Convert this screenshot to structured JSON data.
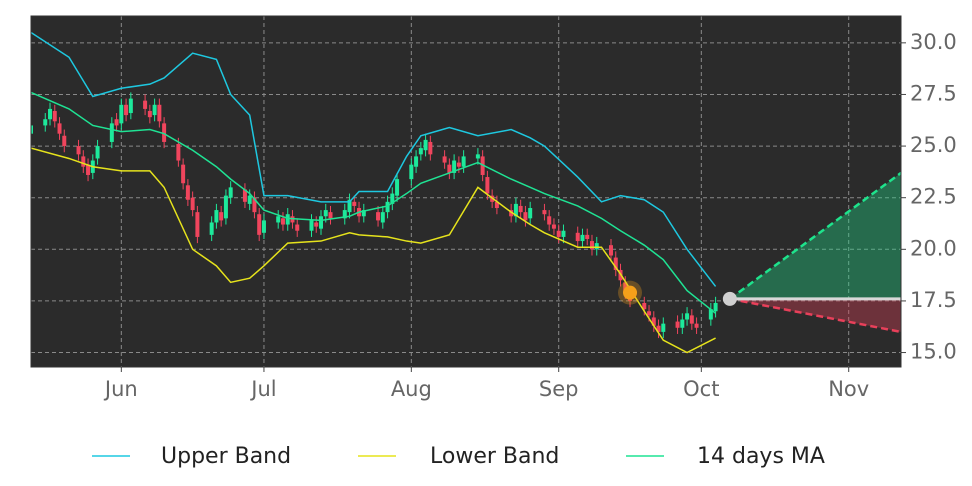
{
  "chart_data": {
    "type": "candlestick",
    "xlim": [
      0,
      183
    ],
    "ylim": [
      14.3,
      31.3
    ],
    "xticks": [
      {
        "value": 19,
        "label": "Jun"
      },
      {
        "value": 49,
        "label": "Jul"
      },
      {
        "value": 80,
        "label": "Aug"
      },
      {
        "value": 111,
        "label": "Sep"
      },
      {
        "value": 141,
        "label": "Oct"
      },
      {
        "value": 172,
        "label": "Nov"
      }
    ],
    "yticks": [
      {
        "value": 15,
        "label": "15.0"
      },
      {
        "value": 17.5,
        "label": "17.5"
      },
      {
        "value": 20,
        "label": "20.0"
      },
      {
        "value": 22.5,
        "label": "22.5"
      },
      {
        "value": 25,
        "label": "25.0"
      },
      {
        "value": 27.5,
        "label": "27.5"
      },
      {
        "value": 30,
        "label": "30.0"
      }
    ],
    "grid": true,
    "background": "#2b2b2b",
    "up_color": "#1de99b",
    "down_color": "#f0455d",
    "x": [
      0,
      3,
      4,
      5,
      6,
      7,
      10,
      11,
      12,
      13,
      14,
      17,
      18,
      19,
      20,
      21,
      24,
      25,
      26,
      27,
      28,
      31,
      32,
      33,
      34,
      35,
      38,
      39,
      40,
      41,
      42,
      45,
      46,
      47,
      48,
      49,
      52,
      53,
      54,
      55,
      56,
      59,
      60,
      61,
      62,
      63,
      66,
      67,
      68,
      69,
      70,
      73,
      74,
      75,
      76,
      77,
      80,
      81,
      82,
      83,
      84,
      87,
      88,
      89,
      90,
      91,
      94,
      95,
      96,
      97,
      98,
      101,
      102,
      103,
      104,
      105,
      108,
      109,
      110,
      111,
      112,
      115,
      116,
      117,
      118,
      119,
      122,
      123,
      124,
      125,
      126,
      129,
      130,
      131,
      132,
      133,
      136,
      137,
      138,
      139,
      140,
      143,
      144
    ],
    "open": [
      25.6,
      26.0,
      26.3,
      26.7,
      26.1,
      25.5,
      25.0,
      24.5,
      24.1,
      23.7,
      24.4,
      25.2,
      26.3,
      26.1,
      27.0,
      26.6,
      27.2,
      26.7,
      26.5,
      27.0,
      26.1,
      25.1,
      24.1,
      23.1,
      22.5,
      21.8,
      20.7,
      21.3,
      21.8,
      21.5,
      22.5,
      22.9,
      22.2,
      22.5,
      21.7,
      20.8,
      21.3,
      21.5,
      21.2,
      21.6,
      21.2,
      20.9,
      21.3,
      21.0,
      21.6,
      21.8,
      21.5,
      21.8,
      22.3,
      22.0,
      21.6,
      21.8,
      21.3,
      21.8,
      22.2,
      22.6,
      23.4,
      24.0,
      24.6,
      24.8,
      25.2,
      24.5,
      24.1,
      23.7,
      24.2,
      24.0,
      24.4,
      24.5,
      23.5,
      22.6,
      22.3,
      21.9,
      21.6,
      22.1,
      21.8,
      21.5,
      21.9,
      21.6,
      21.2,
      20.9,
      20.6,
      20.8,
      20.4,
      20.7,
      20.4,
      20.0,
      20.2,
      19.6,
      19.0,
      18.4,
      17.8,
      17.4,
      17.0,
      16.7,
      16.3,
      16.0,
      16.5,
      16.2,
      16.6,
      16.8,
      16.4,
      16.6,
      17.0
    ],
    "high": [
      26.3,
      26.6,
      27.1,
      27.0,
      26.4,
      25.8,
      25.3,
      24.8,
      24.4,
      24.6,
      25.3,
      26.4,
      26.6,
      27.3,
      27.3,
      27.6,
      27.5,
      27.0,
      27.3,
      27.3,
      26.4,
      25.4,
      24.4,
      23.4,
      22.8,
      22.1,
      21.6,
      22.2,
      22.1,
      22.9,
      23.3,
      23.2,
      22.9,
      22.8,
      22.0,
      21.7,
      21.9,
      21.8,
      22.0,
      21.9,
      21.5,
      21.7,
      21.6,
      21.9,
      22.2,
      22.1,
      22.2,
      22.7,
      22.6,
      22.3,
      22.2,
      22.1,
      22.1,
      22.6,
      23.0,
      23.7,
      24.4,
      24.8,
      25.2,
      25.6,
      25.5,
      24.8,
      24.4,
      24.6,
      24.5,
      24.8,
      24.9,
      24.8,
      23.8,
      22.9,
      22.6,
      22.2,
      22.5,
      22.4,
      22.1,
      22.3,
      22.2,
      21.9,
      21.5,
      21.2,
      21.2,
      21.1,
      21.0,
      21.0,
      20.7,
      20.6,
      20.5,
      19.9,
      19.3,
      18.7,
      18.1,
      17.7,
      17.3,
      17.0,
      16.6,
      16.7,
      16.8,
      16.9,
      17.2,
      17.1,
      16.7,
      17.4,
      17.7
    ],
    "low": [
      25.3,
      25.7,
      26.0,
      25.9,
      25.3,
      24.7,
      24.3,
      23.7,
      23.3,
      23.4,
      24.1,
      24.9,
      25.7,
      25.8,
      26.2,
      26.3,
      26.5,
      26.1,
      26.2,
      25.9,
      24.9,
      24.0,
      22.9,
      22.1,
      21.6,
      20.3,
      20.4,
      21.0,
      21.1,
      21.2,
      22.2,
      22.0,
      21.9,
      21.5,
      20.4,
      20.5,
      21.0,
      20.9,
      20.9,
      21.0,
      20.6,
      20.6,
      20.8,
      20.7,
      21.3,
      21.2,
      21.2,
      21.5,
      21.8,
      21.3,
      21.3,
      21.1,
      21.0,
      21.5,
      21.9,
      22.3,
      23.1,
      23.7,
      24.3,
      24.5,
      24.3,
      23.9,
      23.4,
      23.4,
      23.7,
      23.7,
      24.1,
      23.3,
      22.4,
      22.0,
      21.7,
      21.3,
      21.3,
      21.5,
      21.1,
      21.2,
      21.4,
      20.9,
      20.7,
      20.3,
      20.3,
      20.1,
      20.1,
      20.2,
      19.7,
      19.7,
      19.4,
      18.7,
      18.2,
      17.6,
      17.2,
      16.8,
      16.5,
      16.0,
      15.7,
      15.7,
      15.9,
      15.9,
      16.3,
      16.1,
      15.9,
      16.3,
      16.7
    ],
    "close": [
      26.0,
      26.3,
      26.8,
      26.2,
      25.6,
      25.0,
      24.6,
      24.0,
      23.6,
      24.3,
      25.0,
      26.1,
      26.0,
      27.0,
      26.5,
      27.3,
      26.8,
      26.4,
      27.0,
      26.2,
      25.2,
      24.3,
      23.2,
      22.4,
      21.9,
      20.6,
      21.3,
      21.9,
      21.4,
      22.6,
      23.0,
      22.3,
      22.6,
      21.8,
      20.7,
      21.4,
      21.6,
      21.2,
      21.7,
      21.3,
      20.9,
      21.4,
      21.1,
      21.6,
      21.9,
      21.5,
      21.9,
      22.4,
      22.1,
      21.6,
      21.9,
      21.4,
      21.8,
      22.3,
      22.7,
      23.4,
      24.1,
      24.5,
      24.9,
      25.3,
      24.6,
      24.2,
      23.7,
      24.3,
      24.0,
      24.5,
      24.6,
      23.6,
      22.7,
      22.3,
      22.0,
      21.6,
      22.2,
      21.8,
      21.4,
      22.0,
      21.7,
      21.2,
      21.0,
      20.6,
      20.9,
      20.4,
      20.7,
      20.5,
      20.0,
      20.3,
      19.7,
      19.0,
      18.5,
      17.9,
      17.5,
      17.1,
      16.8,
      16.3,
      16.0,
      16.4,
      16.2,
      16.6,
      16.9,
      16.4,
      16.2,
      17.1,
      17.4
    ],
    "series": [
      {
        "name": "Upper Band",
        "color": "#1ec8e0",
        "x": [
          0,
          8,
          13,
          19,
          25,
          28,
          34,
          39,
          42,
          46,
          49,
          54,
          61,
          67,
          69,
          75,
          79,
          82,
          88,
          94,
          101,
          105,
          108,
          115,
          120,
          124,
          129,
          133,
          138,
          144
        ],
        "values": [
          30.5,
          29.3,
          27.4,
          27.8,
          28.0,
          28.3,
          29.5,
          29.2,
          27.5,
          26.5,
          22.6,
          22.6,
          22.3,
          22.3,
          22.8,
          22.8,
          24.5,
          25.5,
          25.9,
          25.5,
          25.8,
          25.4,
          25.0,
          23.5,
          22.3,
          22.6,
          22.4,
          21.8,
          20.0,
          18.2
        ]
      },
      {
        "name": "Lower Band",
        "color": "#e6e31c",
        "x": [
          0,
          8,
          13,
          19,
          25,
          28,
          34,
          39,
          42,
          46,
          49,
          54,
          61,
          67,
          69,
          75,
          79,
          82,
          88,
          94,
          101,
          105,
          108,
          115,
          120,
          124,
          129,
          133,
          138,
          144
        ],
        "values": [
          24.9,
          24.4,
          24.0,
          23.8,
          23.8,
          23.0,
          20.0,
          19.2,
          18.4,
          18.6,
          19.2,
          20.3,
          20.4,
          20.8,
          20.7,
          20.6,
          20.4,
          20.3,
          20.7,
          23.0,
          21.8,
          21.2,
          20.8,
          20.1,
          20.1,
          18.8,
          17.0,
          15.6,
          15.0,
          15.7
        ]
      },
      {
        "name": "14 days MA",
        "color": "#1fe394",
        "x": [
          0,
          8,
          13,
          19,
          25,
          28,
          34,
          39,
          42,
          46,
          49,
          54,
          61,
          67,
          69,
          75,
          79,
          82,
          88,
          94,
          101,
          105,
          108,
          115,
          120,
          124,
          129,
          133,
          138,
          144
        ],
        "values": [
          27.6,
          26.8,
          26.0,
          25.7,
          25.8,
          25.6,
          24.8,
          24.0,
          23.4,
          22.7,
          21.9,
          21.5,
          21.4,
          21.6,
          21.8,
          22.1,
          22.7,
          23.2,
          23.7,
          24.2,
          23.4,
          23.0,
          22.7,
          22.1,
          21.5,
          20.9,
          20.2,
          19.5,
          18.0,
          16.9
        ]
      }
    ],
    "forecast": {
      "x": [
        147,
        183
      ],
      "upper": [
        17.6,
        23.7
      ],
      "lower": [
        17.6,
        16.0
      ],
      "mid": [
        17.6,
        17.6
      ],
      "upper_color": "#1ee38c",
      "lower_color": "#e8405a",
      "mid_color": "#d8d8d8"
    },
    "markers": [
      {
        "x": 126,
        "y": 17.9,
        "color": "#f5a01a"
      },
      {
        "x": 147,
        "y": 17.6,
        "color": "#d0d0d0"
      }
    ]
  }
}
